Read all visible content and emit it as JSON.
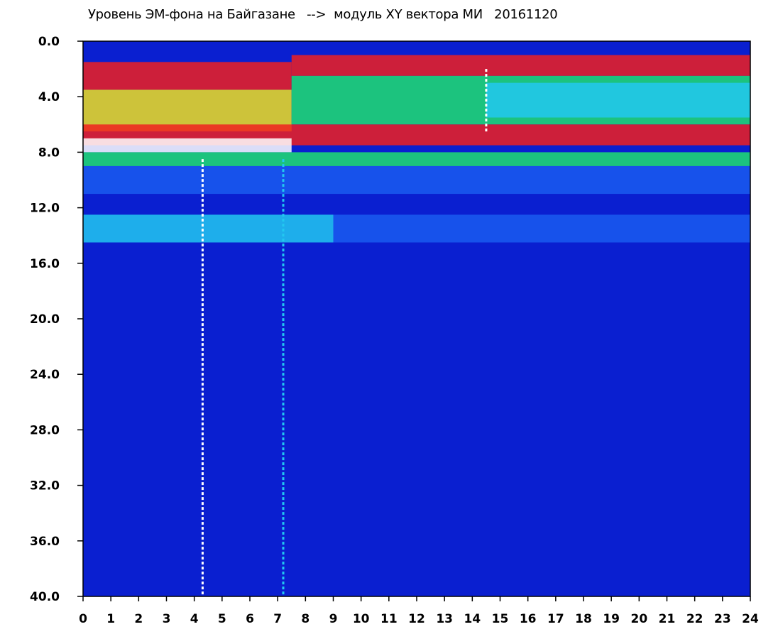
{
  "chart_data": {
    "type": "heatmap",
    "title": "Уровень ЭМ-фона на Байгазане   -->  модуль XY вектора МИ   20161120",
    "xlabel": "",
    "ylabel": "",
    "x_ticks": [
      "0",
      "1",
      "2",
      "3",
      "4",
      "5",
      "6",
      "7",
      "8",
      "9",
      "10",
      "11",
      "12",
      "13",
      "14",
      "15",
      "16",
      "17",
      "18",
      "19",
      "20",
      "21",
      "22",
      "23",
      "24"
    ],
    "y_ticks": [
      "0.0",
      "4.0",
      "8.0",
      "12.0",
      "16.0",
      "20.0",
      "24.0",
      "28.0",
      "32.0",
      "36.0",
      "40.0"
    ],
    "xlim": [
      0,
      24
    ],
    "ylim": [
      0,
      40
    ],
    "y_inverted": true,
    "colormap": [
      "#0a1fd0",
      "#1a5cf0",
      "#22c8f0",
      "#20e070",
      "#f0e020",
      "#f02020",
      "#ffffff"
    ],
    "bands": [
      {
        "y_from": 1.5,
        "y_to": 3.5,
        "x_from": 0,
        "x_to": 7.5,
        "level": 5
      },
      {
        "y_from": 3.5,
        "y_to": 6.5,
        "x_from": 0,
        "x_to": 7.5,
        "level": 4
      },
      {
        "y_from": 1.0,
        "y_to": 2.5,
        "x_from": 7.5,
        "x_to": 24,
        "level": 5
      },
      {
        "y_from": 2.5,
        "y_to": 6.0,
        "x_from": 7.5,
        "x_to": 24,
        "level": 3
      },
      {
        "y_from": 3.0,
        "y_to": 5.5,
        "x_from": 14.5,
        "x_to": 24,
        "level": 2
      },
      {
        "y_from": 6.0,
        "y_to": 7.5,
        "x_from": 0,
        "x_to": 24,
        "level": 5
      },
      {
        "y_from": 7.0,
        "y_to": 8.0,
        "x_from": 0,
        "x_to": 7.5,
        "level": 6
      },
      {
        "y_from": 8.0,
        "y_to": 9.0,
        "x_from": 0,
        "x_to": 24,
        "level": 3
      },
      {
        "y_from": 9.0,
        "y_to": 11.0,
        "x_from": 0,
        "x_to": 24,
        "level": 1
      },
      {
        "y_from": 12.5,
        "y_to": 14.5,
        "x_from": 0,
        "x_to": 9,
        "level": 2
      },
      {
        "y_from": 12.5,
        "y_to": 14.5,
        "x_from": 9,
        "x_to": 24,
        "level": 1
      }
    ],
    "vertical_lines": [
      {
        "x": 4.3,
        "y_from": 8.5,
        "y_to": 40,
        "level": 6
      },
      {
        "x": 7.2,
        "y_from": 8.5,
        "y_to": 40,
        "level": 2
      },
      {
        "x": 14.5,
        "y_from": 2.0,
        "y_to": 6.5,
        "level": 6
      }
    ]
  }
}
